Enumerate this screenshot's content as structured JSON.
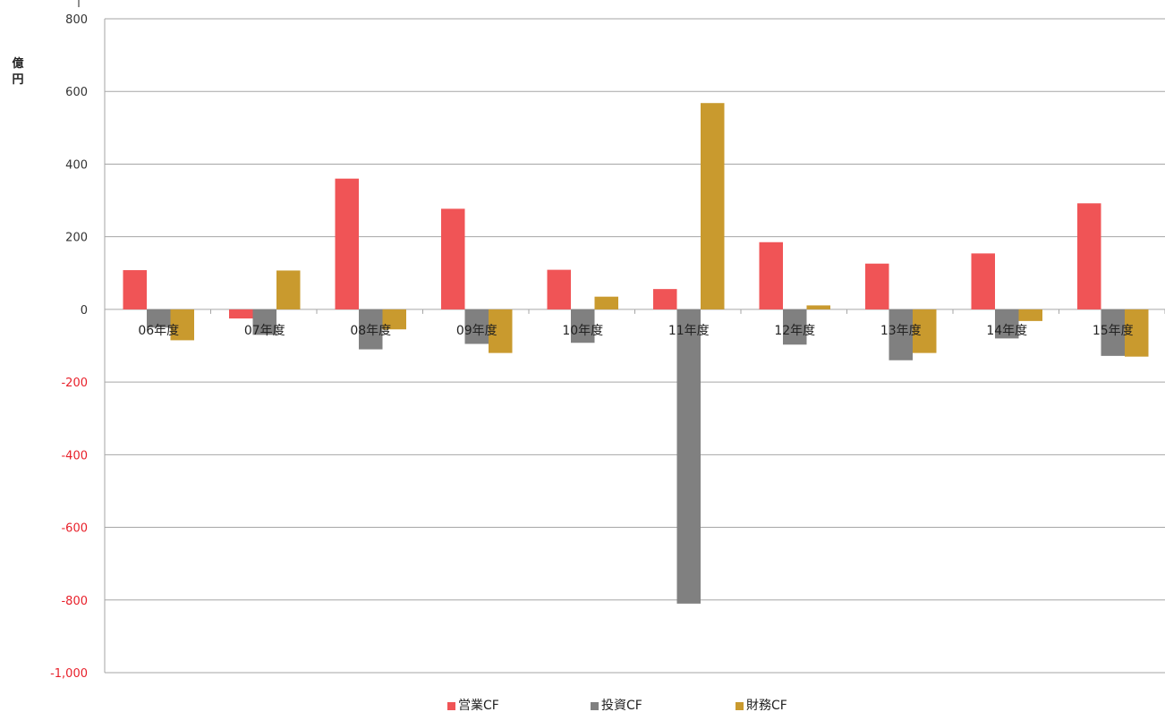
{
  "chart_data": {
    "type": "bar",
    "title": "",
    "xlabel": "",
    "ylabel": "億円",
    "ylim": [
      -1000,
      800
    ],
    "yticks": [
      800,
      600,
      400,
      200,
      0,
      -200,
      -400,
      -600,
      -800,
      -1000
    ],
    "ytick_labels": [
      "800",
      "600",
      "400",
      "200",
      "0",
      "-200",
      "-400",
      "-600",
      "-800",
      "-1,000"
    ],
    "negative_tick_color": "#e8202a",
    "grid": true,
    "legend_position": "bottom",
    "categories": [
      "06年度",
      "07年度",
      "08年度",
      "09年度",
      "10年度",
      "11年度",
      "12年度",
      "13年度",
      "14年度",
      "15年度"
    ],
    "series": [
      {
        "name": "営業CF",
        "color": "#f05456",
        "values": [
          108,
          -25,
          360,
          277,
          109,
          56,
          185,
          126,
          154,
          292
        ]
      },
      {
        "name": "投資CF",
        "color": "#808080",
        "values": [
          -50,
          -70,
          -110,
          -95,
          -92,
          -810,
          -97,
          -140,
          -80,
          -128
        ]
      },
      {
        "name": "財務CF",
        "color": "#c99a2e",
        "values": [
          -85,
          107,
          -55,
          -120,
          35,
          568,
          11,
          -120,
          -32,
          -130
        ]
      }
    ]
  }
}
